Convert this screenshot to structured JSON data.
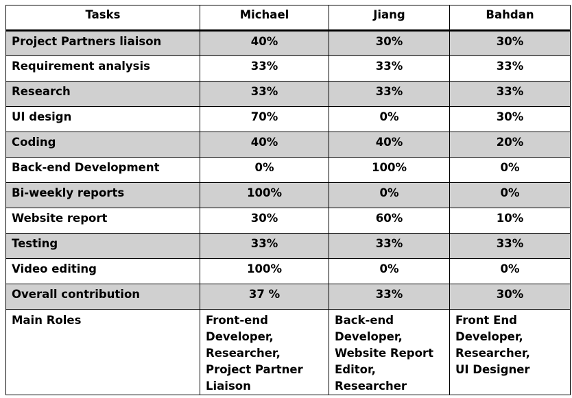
{
  "table": {
    "headers": [
      "Tasks",
      "Michael",
      "Jiang",
      "Bahdan"
    ],
    "rows": [
      {
        "task": "Project Partners liaison",
        "values": [
          "40%",
          "30%",
          "30%"
        ]
      },
      {
        "task": "Requirement analysis",
        "values": [
          "33%",
          "33%",
          "33%"
        ]
      },
      {
        "task": "Research",
        "values": [
          "33%",
          "33%",
          "33%"
        ]
      },
      {
        "task": "UI design",
        "values": [
          "70%",
          "0%",
          "30%"
        ]
      },
      {
        "task": "Coding",
        "values": [
          "40%",
          "40%",
          "20%"
        ]
      },
      {
        "task": "Back-end Development",
        "values": [
          "0%",
          "100%",
          "0%"
        ]
      },
      {
        "task": "Bi-weekly reports",
        "values": [
          "100%",
          "0%",
          "0%"
        ]
      },
      {
        "task": "Website report",
        "values": [
          "30%",
          "60%",
          "10%"
        ]
      },
      {
        "task": "Testing",
        "values": [
          "33%",
          "33%",
          "33%"
        ]
      },
      {
        "task": "Video editing",
        "values": [
          "100%",
          "0%",
          "0%"
        ]
      },
      {
        "task": "Overall contribution",
        "values": [
          "37 %",
          "33%",
          "30%"
        ]
      }
    ],
    "roles": {
      "label": "Main Roles",
      "values": [
        "Front-end\nDeveloper,\nResearcher,\nProject Partner\nLiaison",
        "Back-end\nDeveloper,\nWebsite Report\nEditor, Researcher",
        "Front End\nDeveloper,\nResearcher,\nUI Designer"
      ]
    },
    "row_shading": "#d0d0d0"
  }
}
